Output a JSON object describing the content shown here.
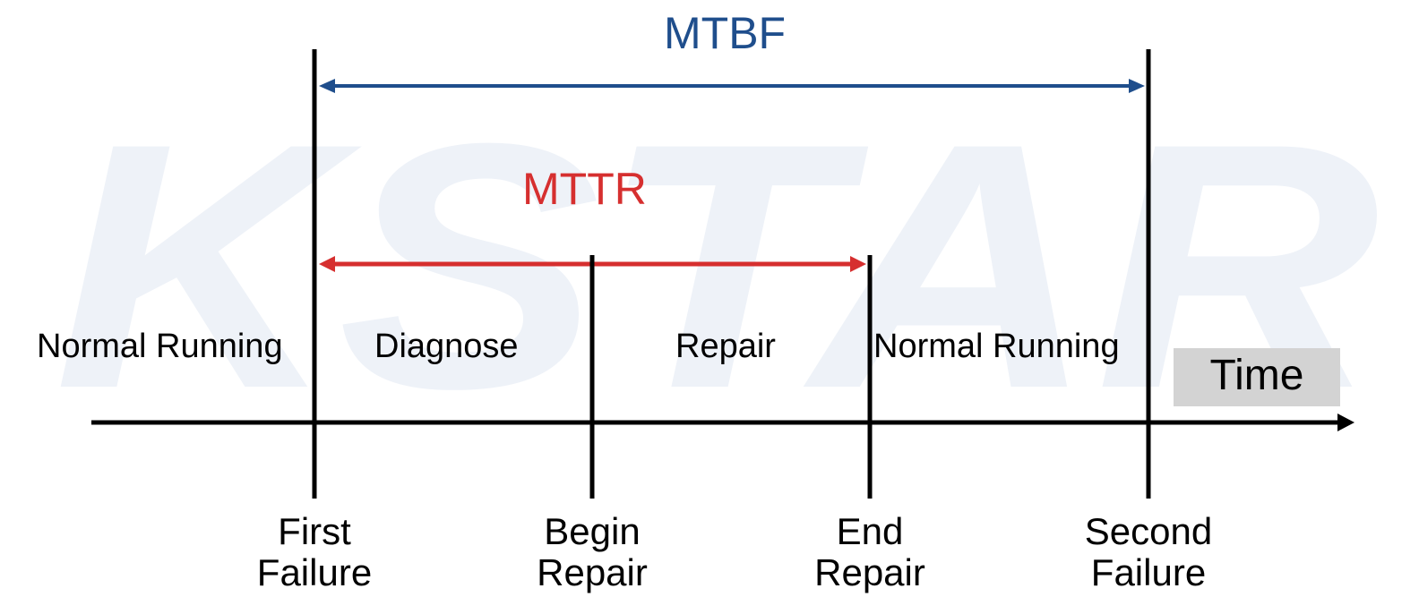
{
  "watermark": {
    "text": "KSTAR"
  },
  "colors": {
    "mtbf": "#1f4e8c",
    "mttr": "#d62f2f",
    "axis": "#000000",
    "watermark": "#eef2f8",
    "time_box": "#d3d3d3"
  },
  "intervals": {
    "mtbf": {
      "label": "MTBF"
    },
    "mttr": {
      "label": "MTTR"
    }
  },
  "phases": [
    {
      "label": "Normal Running"
    },
    {
      "label": "Diagnose"
    },
    {
      "label": "Repair"
    },
    {
      "label": "Normal Running"
    }
  ],
  "events": [
    {
      "line1": "First",
      "line2": "Failure"
    },
    {
      "line1": "Begin",
      "line2": "Repair"
    },
    {
      "line1": "End",
      "line2": "Repair"
    },
    {
      "line1": "Second",
      "line2": "Failure"
    }
  ],
  "axis": {
    "label": "Time"
  }
}
